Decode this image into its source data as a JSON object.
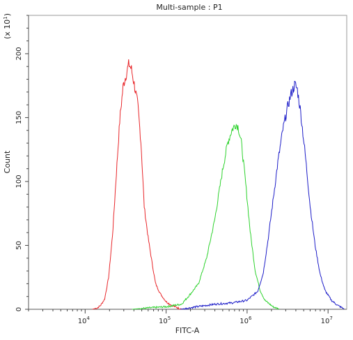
{
  "chart_data": {
    "type": "line",
    "title": "Multi-sample : P1",
    "xlabel": "FITC-A",
    "ylabel": "Count",
    "y_multiplier_label": "(x 10",
    "y_multiplier_exp": "1",
    "x_scale": "log",
    "xlim": [
      2000,
      17000000
    ],
    "ylim": [
      0,
      230
    ],
    "x_ticks": [
      {
        "value": 10000,
        "base": "10",
        "exp": "4"
      },
      {
        "value": 100000,
        "base": "10",
        "exp": "5"
      },
      {
        "value": 1000000,
        "base": "10",
        "exp": "6"
      },
      {
        "value": 10000000,
        "base": "10",
        "exp": "7"
      }
    ],
    "y_ticks": [
      0,
      50,
      100,
      150,
      200
    ],
    "grid": false,
    "legend": "none",
    "series": [
      {
        "color": "#e8262a",
        "points": [
          [
            12300,
            0
          ],
          [
            14100,
            1
          ],
          [
            15500,
            3
          ],
          [
            17400,
            8
          ],
          [
            19500,
            25
          ],
          [
            21900,
            60
          ],
          [
            24500,
            110
          ],
          [
            26900,
            150
          ],
          [
            29500,
            175
          ],
          [
            32400,
            185
          ],
          [
            34700,
            192
          ],
          [
            37200,
            188
          ],
          [
            40700,
            175
          ],
          [
            44700,
            160
          ],
          [
            49000,
            130
          ],
          [
            53700,
            80
          ],
          [
            60300,
            55
          ],
          [
            67600,
            35
          ],
          [
            74100,
            20
          ],
          [
            85100,
            12
          ],
          [
            100000,
            6
          ],
          [
            117500,
            3
          ],
          [
            141300,
            1
          ],
          [
            158500,
            0
          ]
        ]
      },
      {
        "color": "#2dd22d",
        "points": [
          [
            38000,
            0
          ],
          [
            60000,
            1
          ],
          [
            100000,
            2
          ],
          [
            155000,
            4
          ],
          [
            200000,
            12
          ],
          [
            251000,
            20
          ],
          [
            316000,
            40
          ],
          [
            398000,
            70
          ],
          [
            501000,
            110
          ],
          [
            575000,
            130
          ],
          [
            646000,
            140
          ],
          [
            724000,
            145
          ],
          [
            776000,
            143
          ],
          [
            851000,
            130
          ],
          [
            955000,
            100
          ],
          [
            1096000,
            60
          ],
          [
            1259000,
            30
          ],
          [
            1445000,
            15
          ],
          [
            1660000,
            7
          ],
          [
            2089000,
            2
          ],
          [
            2512000,
            0
          ]
        ]
      },
      {
        "color": "#1c1cc8",
        "points": [
          [
            150000,
            0
          ],
          [
            240000,
            2
          ],
          [
            400000,
            4
          ],
          [
            650000,
            5
          ],
          [
            1000000,
            7
          ],
          [
            1350000,
            14
          ],
          [
            1580000,
            28
          ],
          [
            1820000,
            55
          ],
          [
            2089000,
            85
          ],
          [
            2399000,
            115
          ],
          [
            2754000,
            140
          ],
          [
            3162000,
            158
          ],
          [
            3467000,
            168
          ],
          [
            3890000,
            176
          ],
          [
            4169000,
            172
          ],
          [
            4571000,
            155
          ],
          [
            5248000,
            120
          ],
          [
            6026000,
            80
          ],
          [
            6918000,
            50
          ],
          [
            7943000,
            28
          ],
          [
            9120000,
            15
          ],
          [
            11000000,
            7
          ],
          [
            13200000,
            3
          ],
          [
            16000000,
            0
          ]
        ]
      }
    ]
  }
}
